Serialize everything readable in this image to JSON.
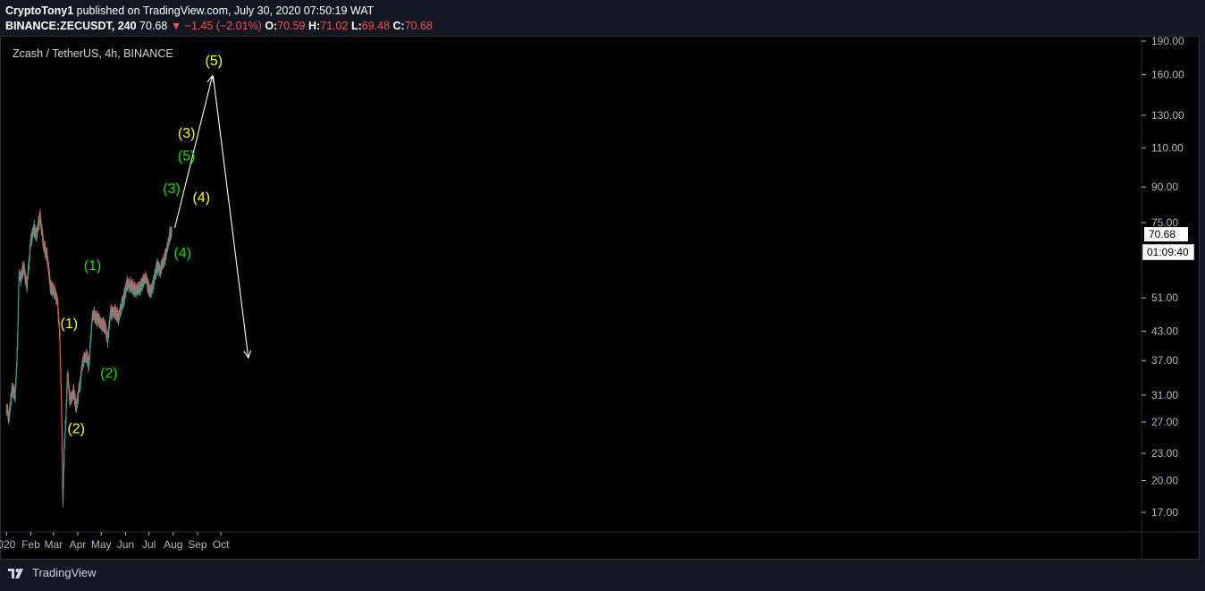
{
  "header": {
    "author": "CryptoTony1",
    "published_text": "published on TradingView.com, July 30, 2020 07:50:19 WAT",
    "symbol": "BINANCE:ZECUSDT, 240",
    "last": "70.68",
    "change": "▼ −1.45 (−2.01%)",
    "open_label": "O:",
    "open": "70.59",
    "high_label": "H:",
    "high": "71.02",
    "low_label": "L:",
    "low": "69.48",
    "close_label": "C:",
    "close": "70.68"
  },
  "chart_title": "Zcash / TetherUS, 4h, BINANCE",
  "price_tag": {
    "last_price": "70.68",
    "countdown": "01:09:40"
  },
  "footer": {
    "brand": "TradingView"
  },
  "colors": {
    "up": "#26a69a",
    "down": "#ef5350",
    "wave_primary": "#ffff00",
    "wave_sub": "#00e600",
    "background": "#000000"
  },
  "chart_data": {
    "type": "candlestick",
    "y_axis": {
      "scale": "log",
      "ticks": [
        17,
        20,
        23,
        27,
        31,
        37,
        43,
        51,
        75,
        90,
        110,
        130,
        160,
        190
      ],
      "tick_labels": [
        "17.00",
        "20.00",
        "23.00",
        "27.00",
        "31.00",
        "37.00",
        "43.00",
        "51.00",
        "75.00",
        "90.00",
        "110.00",
        "130.00",
        "160.00",
        "190.00"
      ]
    },
    "x_axis": {
      "tick_labels": [
        "020",
        "Feb",
        "Mar",
        "Apr",
        "May",
        "Jun",
        "Jul",
        "Aug",
        "Sep",
        "Oct"
      ],
      "tick_dates": [
        "2020-01-01",
        "2020-02-01",
        "2020-03-01",
        "2020-04-01",
        "2020-05-01",
        "2020-06-01",
        "2020-07-01",
        "2020-08-01",
        "2020-09-01",
        "2020-10-01"
      ]
    },
    "price_path": [
      {
        "date": "2020-01-01",
        "price": 29
      },
      {
        "date": "2020-01-04",
        "price": 27.5
      },
      {
        "date": "2020-01-08",
        "price": 32
      },
      {
        "date": "2020-01-12",
        "price": 31
      },
      {
        "date": "2020-01-15",
        "price": 40
      },
      {
        "date": "2020-01-17",
        "price": 58
      },
      {
        "date": "2020-01-19",
        "price": 56
      },
      {
        "date": "2020-01-23",
        "price": 60
      },
      {
        "date": "2020-01-27",
        "price": 54
      },
      {
        "date": "2020-02-01",
        "price": 68
      },
      {
        "date": "2020-02-05",
        "price": 73
      },
      {
        "date": "2020-02-08",
        "price": 70
      },
      {
        "date": "2020-02-13",
        "price": 78
      },
      {
        "date": "2020-02-17",
        "price": 67
      },
      {
        "date": "2020-02-22",
        "price": 63
      },
      {
        "date": "2020-02-26",
        "price": 54
      },
      {
        "date": "2020-03-02",
        "price": 53
      },
      {
        "date": "2020-03-06",
        "price": 50
      },
      {
        "date": "2020-03-09",
        "price": 42
      },
      {
        "date": "2020-03-12",
        "price": 25
      },
      {
        "date": "2020-03-13",
        "price": 18
      },
      {
        "date": "2020-03-15",
        "price": 24
      },
      {
        "date": "2020-03-17",
        "price": 28
      },
      {
        "date": "2020-03-19",
        "price": 35
      },
      {
        "date": "2020-03-22",
        "price": 30
      },
      {
        "date": "2020-03-27",
        "price": 31.5
      },
      {
        "date": "2020-03-30",
        "price": 29
      },
      {
        "date": "2020-04-03",
        "price": 32
      },
      {
        "date": "2020-04-08",
        "price": 37
      },
      {
        "date": "2020-04-12",
        "price": 38
      },
      {
        "date": "2020-04-15",
        "price": 36
      },
      {
        "date": "2020-04-20",
        "price": 47
      },
      {
        "date": "2020-04-25",
        "price": 46
      },
      {
        "date": "2020-05-01",
        "price": 45
      },
      {
        "date": "2020-05-06",
        "price": 44
      },
      {
        "date": "2020-05-09",
        "price": 41
      },
      {
        "date": "2020-05-13",
        "price": 47
      },
      {
        "date": "2020-05-18",
        "price": 48
      },
      {
        "date": "2020-05-23",
        "price": 46
      },
      {
        "date": "2020-05-30",
        "price": 51
      },
      {
        "date": "2020-06-03",
        "price": 55
      },
      {
        "date": "2020-06-10",
        "price": 54
      },
      {
        "date": "2020-06-15",
        "price": 53
      },
      {
        "date": "2020-06-20",
        "price": 54
      },
      {
        "date": "2020-06-27",
        "price": 57
      },
      {
        "date": "2020-07-02",
        "price": 52
      },
      {
        "date": "2020-07-07",
        "price": 55
      },
      {
        "date": "2020-07-11",
        "price": 60
      },
      {
        "date": "2020-07-15",
        "price": 59
      },
      {
        "date": "2020-07-19",
        "price": 61
      },
      {
        "date": "2020-07-23",
        "price": 64
      },
      {
        "date": "2020-07-27",
        "price": 70
      },
      {
        "date": "2020-07-30",
        "price": 72
      }
    ],
    "projection_lines": [
      {
        "from": {
          "date": "2020-08-03",
          "price": 73
        },
        "to": {
          "date": "2020-09-20",
          "price": 159
        }
      },
      {
        "from": {
          "date": "2020-09-21",
          "price": 159
        },
        "to": {
          "date": "2020-11-05",
          "price": 37.5
        }
      }
    ],
    "annotations": [
      {
        "text": "(1)",
        "color": "#ffff00",
        "date": "2020-03-21",
        "price": 44.5
      },
      {
        "text": "(2)",
        "color": "#ffff00",
        "date": "2020-03-30",
        "price": 26
      },
      {
        "text": "(1)",
        "color": "#00e600",
        "date": "2020-04-20",
        "price": 60
      },
      {
        "text": "(2)",
        "color": "#00e600",
        "date": "2020-05-11",
        "price": 34.5
      },
      {
        "text": "(3)",
        "color": "#00e600",
        "date": "2020-07-30",
        "price": 89
      },
      {
        "text": "(4)",
        "color": "#00e600",
        "date": "2020-08-13",
        "price": 64
      },
      {
        "text": "(3)",
        "color": "#ffff00",
        "date": "2020-08-18",
        "price": 118
      },
      {
        "text": "(5)",
        "color": "#00e600",
        "date": "2020-08-18",
        "price": 105
      },
      {
        "text": "(4)",
        "color": "#ffff00",
        "date": "2020-09-06",
        "price": 85
      },
      {
        "text": "(5)",
        "color": "#ffff00",
        "date": "2020-09-22",
        "price": 171
      }
    ]
  }
}
